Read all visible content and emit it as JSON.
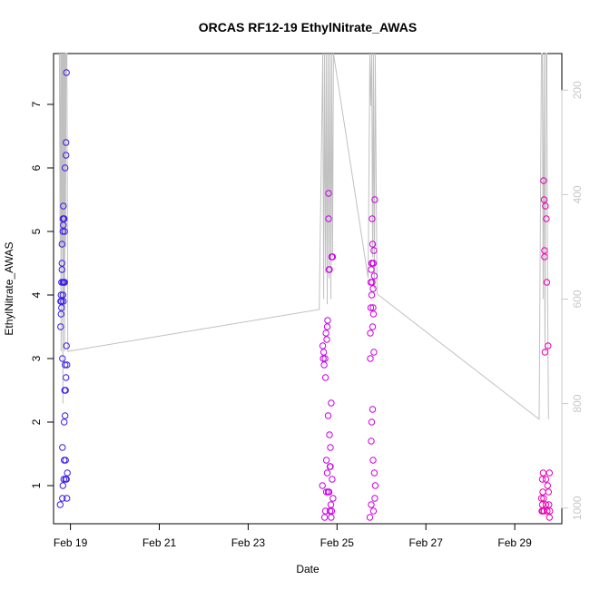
{
  "chart_data": {
    "type": "scatter",
    "title": "ORCAS RF12-19 EthylNitrate_AWAS",
    "xlabel": "Date",
    "ylabel": "EthylNitrate_AWAS",
    "x_ticks": [
      "Feb 19",
      "Feb 21",
      "Feb 23",
      "Feb 25",
      "Feb 27",
      "Feb 29"
    ],
    "x_tick_days": [
      19,
      21,
      23,
      25,
      27,
      29
    ],
    "xlim_days": [
      18.62,
      30.06
    ],
    "y_ticks": [
      "1",
      "2",
      "3",
      "4",
      "5",
      "6",
      "7"
    ],
    "ylim": [
      0.4,
      7.8
    ],
    "right_axis": {
      "ticks": [
        "200",
        "400",
        "600",
        "800",
        "1000"
      ],
      "values": [
        200,
        400,
        600,
        800,
        1000
      ],
      "reversed": true,
      "range": [
        130,
        1030
      ],
      "color": "#c8c8c8"
    },
    "grid": false,
    "series": [
      {
        "color": "#3a1fe8",
        "x": [
          18.77,
          18.78,
          18.78,
          18.79,
          18.79,
          18.8,
          18.8,
          18.8,
          18.81,
          18.81,
          18.81,
          18.82,
          18.82,
          18.82,
          18.83,
          18.83,
          18.83,
          18.83,
          18.83,
          18.84,
          18.84,
          18.84,
          18.85,
          18.85,
          18.85,
          18.86,
          18.86,
          18.86,
          18.86,
          18.87,
          18.87,
          18.87,
          18.88,
          18.88,
          18.88,
          18.89,
          18.89,
          18.89,
          18.9,
          18.9,
          18.9,
          18.91,
          18.91,
          18.91,
          18.92,
          18.92,
          18.93
        ],
        "y": [
          0.7,
          3.5,
          3.9,
          4.0,
          3.7,
          4.2,
          3.9,
          3.8,
          4.5,
          4.8,
          4.4,
          3.0,
          0.8,
          1.6,
          5.2,
          5.0,
          4.2,
          4.0,
          1.0,
          5.4,
          5.1,
          3.9,
          5.2,
          4.2,
          1.1,
          5.2,
          4.2,
          2.0,
          1.4,
          5.0,
          4.2,
          2.5,
          2.9,
          2.1,
          6.0,
          2.5,
          1.1,
          1.4,
          6.4,
          6.2,
          2.7,
          3.2,
          7.5,
          1.1,
          0.8,
          2.9,
          1.2
        ]
      },
      {
        "color": "#c800e8",
        "x": [
          24.67,
          24.68,
          24.69,
          24.7,
          24.71,
          24.72,
          24.73,
          24.74,
          24.74,
          24.75,
          24.76,
          24.76,
          24.77,
          24.78,
          24.78,
          24.79,
          24.8,
          24.8,
          24.81,
          24.81,
          24.82,
          24.82,
          24.83,
          24.83,
          24.84,
          24.84,
          24.85,
          24.85,
          24.86,
          24.87,
          24.87,
          24.88,
          24.88,
          24.89,
          24.9,
          24.91
        ],
        "y": [
          1.0,
          3.2,
          3.0,
          3.1,
          2.9,
          0.5,
          3.0,
          2.7,
          0.6,
          3.4,
          1.4,
          0.9,
          3.3,
          3.5,
          1.2,
          3.6,
          2.1,
          0.9,
          5.2,
          5.6,
          0.9,
          4.4,
          1.8,
          4.4,
          1.3,
          0.6,
          1.6,
          1.3,
          0.7,
          2.3,
          0.5,
          4.6,
          0.6,
          1.1,
          4.6,
          0.8
        ]
      },
      {
        "color": "#d000e0",
        "x": [
          25.74,
          25.75,
          25.75,
          25.76,
          25.76,
          25.77,
          25.77,
          25.77,
          25.78,
          25.78,
          25.78,
          25.79,
          25.79,
          25.79,
          25.8,
          25.8,
          25.8,
          25.81,
          25.81,
          25.81,
          25.82,
          25.82,
          25.82,
          25.83,
          25.83,
          25.84,
          25.84,
          25.85,
          25.85,
          25.86
        ],
        "y": [
          0.5,
          3.4,
          3.0,
          4.2,
          3.8,
          4.4,
          1.7,
          0.7,
          4.5,
          4.0,
          2.0,
          5.2,
          4.5,
          4.2,
          2.2,
          4.8,
          3.5,
          3.8,
          4.1,
          1.4,
          4.5,
          3.7,
          0.6,
          4.7,
          3.1,
          4.3,
          1.2,
          5.5,
          0.8,
          1.0
        ]
      },
      {
        "color": "#e800b4",
        "x": [
          29.6,
          29.61,
          29.62,
          29.62,
          29.63,
          29.63,
          29.64,
          29.65,
          29.65,
          29.66,
          29.66,
          29.67,
          29.67,
          29.68,
          29.69,
          29.7,
          29.7,
          29.71,
          29.72,
          29.73,
          29.74,
          29.75,
          29.76,
          29.77,
          29.78,
          29.78,
          29.79
        ],
        "y": [
          0.8,
          0.6,
          1.1,
          0.7,
          0.9,
          0.6,
          1.2,
          0.8,
          5.8,
          5.5,
          0.6,
          4.7,
          4.6,
          3.1,
          5.4,
          0.7,
          1.1,
          5.2,
          4.2,
          0.6,
          1.0,
          3.2,
          0.9,
          0.7,
          1.2,
          0.5,
          0.6
        ]
      }
    ],
    "altitude_trace": {
      "color": "#c0c0c0",
      "x": [
        18.75,
        18.77,
        18.78,
        18.79,
        18.8,
        18.81,
        18.82,
        18.83,
        18.84,
        18.85,
        18.86,
        18.87,
        18.88,
        18.89,
        18.9,
        18.92,
        18.94,
        24.6,
        24.68,
        24.7,
        24.72,
        24.74,
        24.76,
        24.78,
        24.8,
        24.82,
        24.84,
        24.86,
        24.88,
        24.9,
        24.92,
        25.7,
        25.74,
        25.76,
        25.78,
        25.8,
        25.82,
        25.84,
        25.86,
        25.9,
        29.55,
        29.6,
        29.62,
        29.64,
        29.66,
        29.68,
        29.7,
        29.72,
        29.74,
        29.76
      ],
      "y": [
        130,
        500,
        130,
        700,
        130,
        500,
        130,
        800,
        130,
        600,
        130,
        700,
        130,
        500,
        130,
        130,
        700,
        620,
        130,
        600,
        130,
        550,
        130,
        610,
        130,
        560,
        130,
        600,
        130,
        520,
        130,
        560,
        130,
        230,
        130,
        520,
        130,
        580,
        130,
        590,
        830,
        130,
        130,
        600,
        130,
        700,
        130,
        130,
        600,
        830
      ]
    }
  }
}
